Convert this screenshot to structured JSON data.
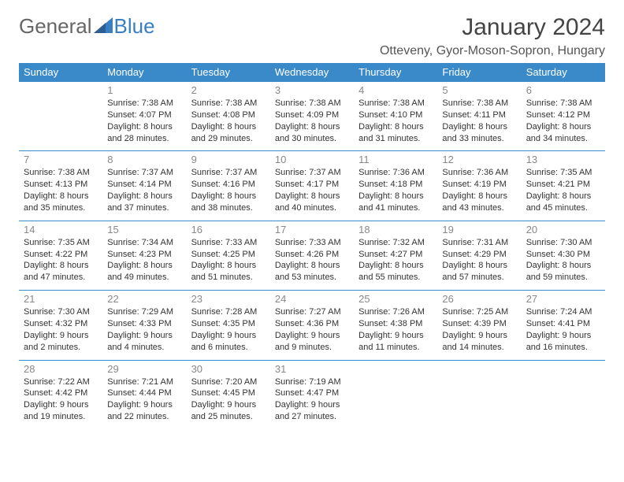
{
  "logo": {
    "part1": "General",
    "part2": "Blue"
  },
  "title": "January 2024",
  "location": "Otteveny, Gyor-Moson-Sopron, Hungary",
  "colors": {
    "header_bg": "#3a8ac9",
    "header_fg": "#ffffff",
    "row_border": "#3a8ac9",
    "daynum": "#888888",
    "text": "#333333",
    "logo_blue": "#3a7fc4"
  },
  "weekdays": [
    "Sunday",
    "Monday",
    "Tuesday",
    "Wednesday",
    "Thursday",
    "Friday",
    "Saturday"
  ],
  "weeks": [
    [
      null,
      {
        "n": "1",
        "sunrise": "7:38 AM",
        "sunset": "4:07 PM",
        "daylight": "8 hours and 28 minutes."
      },
      {
        "n": "2",
        "sunrise": "7:38 AM",
        "sunset": "4:08 PM",
        "daylight": "8 hours and 29 minutes."
      },
      {
        "n": "3",
        "sunrise": "7:38 AM",
        "sunset": "4:09 PM",
        "daylight": "8 hours and 30 minutes."
      },
      {
        "n": "4",
        "sunrise": "7:38 AM",
        "sunset": "4:10 PM",
        "daylight": "8 hours and 31 minutes."
      },
      {
        "n": "5",
        "sunrise": "7:38 AM",
        "sunset": "4:11 PM",
        "daylight": "8 hours and 33 minutes."
      },
      {
        "n": "6",
        "sunrise": "7:38 AM",
        "sunset": "4:12 PM",
        "daylight": "8 hours and 34 minutes."
      }
    ],
    [
      {
        "n": "7",
        "sunrise": "7:38 AM",
        "sunset": "4:13 PM",
        "daylight": "8 hours and 35 minutes."
      },
      {
        "n": "8",
        "sunrise": "7:37 AM",
        "sunset": "4:14 PM",
        "daylight": "8 hours and 37 minutes."
      },
      {
        "n": "9",
        "sunrise": "7:37 AM",
        "sunset": "4:16 PM",
        "daylight": "8 hours and 38 minutes."
      },
      {
        "n": "10",
        "sunrise": "7:37 AM",
        "sunset": "4:17 PM",
        "daylight": "8 hours and 40 minutes."
      },
      {
        "n": "11",
        "sunrise": "7:36 AM",
        "sunset": "4:18 PM",
        "daylight": "8 hours and 41 minutes."
      },
      {
        "n": "12",
        "sunrise": "7:36 AM",
        "sunset": "4:19 PM",
        "daylight": "8 hours and 43 minutes."
      },
      {
        "n": "13",
        "sunrise": "7:35 AM",
        "sunset": "4:21 PM",
        "daylight": "8 hours and 45 minutes."
      }
    ],
    [
      {
        "n": "14",
        "sunrise": "7:35 AM",
        "sunset": "4:22 PM",
        "daylight": "8 hours and 47 minutes."
      },
      {
        "n": "15",
        "sunrise": "7:34 AM",
        "sunset": "4:23 PM",
        "daylight": "8 hours and 49 minutes."
      },
      {
        "n": "16",
        "sunrise": "7:33 AM",
        "sunset": "4:25 PM",
        "daylight": "8 hours and 51 minutes."
      },
      {
        "n": "17",
        "sunrise": "7:33 AM",
        "sunset": "4:26 PM",
        "daylight": "8 hours and 53 minutes."
      },
      {
        "n": "18",
        "sunrise": "7:32 AM",
        "sunset": "4:27 PM",
        "daylight": "8 hours and 55 minutes."
      },
      {
        "n": "19",
        "sunrise": "7:31 AM",
        "sunset": "4:29 PM",
        "daylight": "8 hours and 57 minutes."
      },
      {
        "n": "20",
        "sunrise": "7:30 AM",
        "sunset": "4:30 PM",
        "daylight": "8 hours and 59 minutes."
      }
    ],
    [
      {
        "n": "21",
        "sunrise": "7:30 AM",
        "sunset": "4:32 PM",
        "daylight": "9 hours and 2 minutes."
      },
      {
        "n": "22",
        "sunrise": "7:29 AM",
        "sunset": "4:33 PM",
        "daylight": "9 hours and 4 minutes."
      },
      {
        "n": "23",
        "sunrise": "7:28 AM",
        "sunset": "4:35 PM",
        "daylight": "9 hours and 6 minutes."
      },
      {
        "n": "24",
        "sunrise": "7:27 AM",
        "sunset": "4:36 PM",
        "daylight": "9 hours and 9 minutes."
      },
      {
        "n": "25",
        "sunrise": "7:26 AM",
        "sunset": "4:38 PM",
        "daylight": "9 hours and 11 minutes."
      },
      {
        "n": "26",
        "sunrise": "7:25 AM",
        "sunset": "4:39 PM",
        "daylight": "9 hours and 14 minutes."
      },
      {
        "n": "27",
        "sunrise": "7:24 AM",
        "sunset": "4:41 PM",
        "daylight": "9 hours and 16 minutes."
      }
    ],
    [
      {
        "n": "28",
        "sunrise": "7:22 AM",
        "sunset": "4:42 PM",
        "daylight": "9 hours and 19 minutes."
      },
      {
        "n": "29",
        "sunrise": "7:21 AM",
        "sunset": "4:44 PM",
        "daylight": "9 hours and 22 minutes."
      },
      {
        "n": "30",
        "sunrise": "7:20 AM",
        "sunset": "4:45 PM",
        "daylight": "9 hours and 25 minutes."
      },
      {
        "n": "31",
        "sunrise": "7:19 AM",
        "sunset": "4:47 PM",
        "daylight": "9 hours and 27 minutes."
      },
      null,
      null,
      null
    ]
  ]
}
